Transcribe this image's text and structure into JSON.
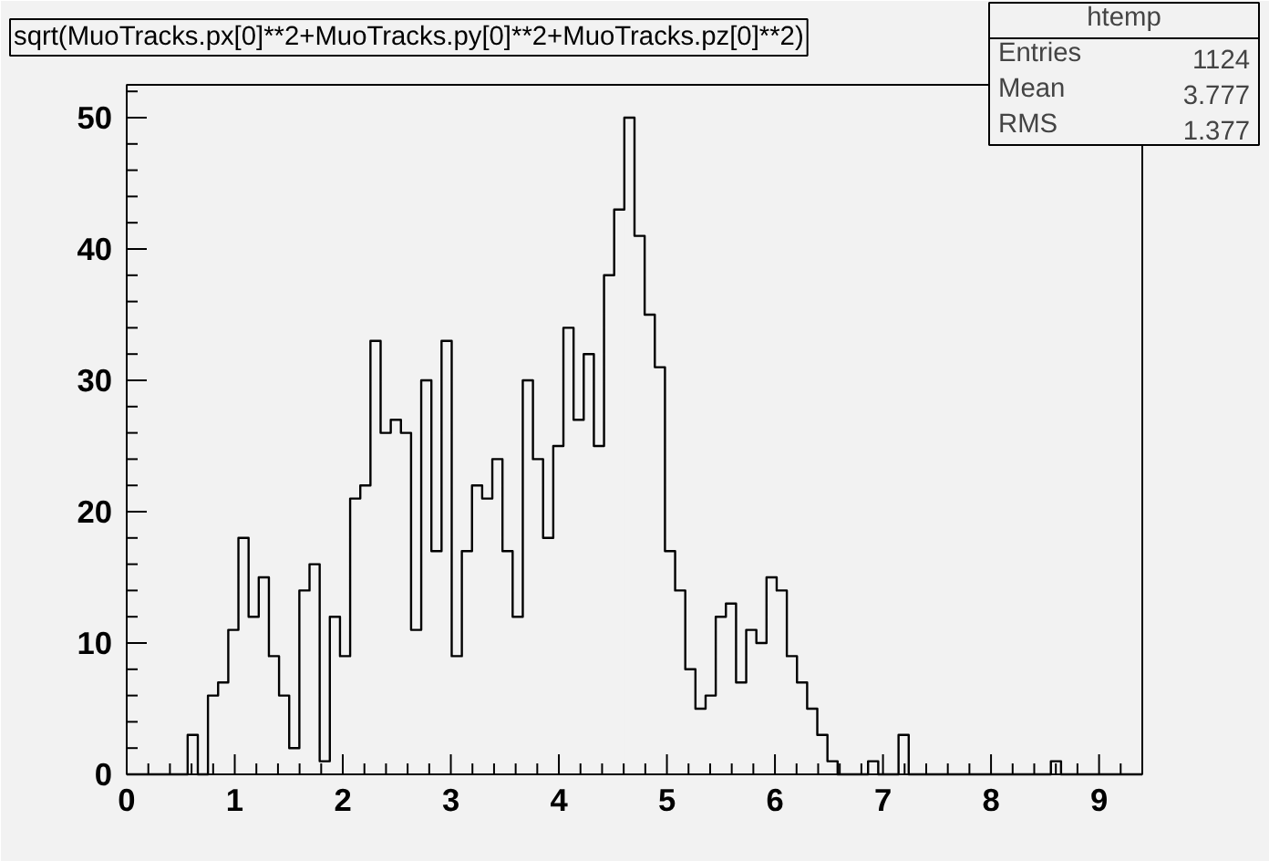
{
  "chart_data": {
    "type": "histogram",
    "title": "sqrt(MuoTracks.px[0]**2+MuoTracks.py[0]**2+MuoTracks.pz[0]**2)",
    "bins": [
      0,
      0.094,
      0.188,
      0.282,
      0.376,
      0.47,
      0.564,
      0.658,
      0.752,
      0.846,
      0.94,
      1.034,
      1.128,
      1.222,
      1.316,
      1.41,
      1.504,
      1.598,
      1.692,
      1.786,
      1.88,
      1.974,
      2.068,
      2.162,
      2.256,
      2.35,
      2.444,
      2.538,
      2.632,
      2.726,
      2.82,
      2.914,
      3.008,
      3.102,
      3.196,
      3.29,
      3.384,
      3.478,
      3.572,
      3.666,
      3.76,
      3.854,
      3.948,
      4.042,
      4.136,
      4.23,
      4.324,
      4.418,
      4.512,
      4.606,
      4.7,
      4.794,
      4.888,
      4.982,
      5.076,
      5.17,
      5.264,
      5.358,
      5.452,
      5.546,
      5.64,
      5.734,
      5.828,
      5.922,
      6.016,
      6.11,
      6.204,
      6.298,
      6.392,
      6.486,
      6.58,
      6.674,
      6.768,
      6.862,
      6.956,
      7.05,
      7.144,
      7.238,
      7.332,
      7.426,
      7.52,
      7.614,
      7.708,
      7.802,
      7.896,
      7.99,
      8.084,
      8.178,
      8.272,
      8.366,
      8.46,
      8.554,
      8.648,
      8.742,
      8.836,
      8.93,
      9.024,
      9.118,
      9.212,
      9.306,
      9.4
    ],
    "values": [
      0,
      0,
      0,
      0,
      0,
      0,
      3,
      0,
      6,
      7,
      11,
      18,
      12,
      15,
      9,
      6,
      2,
      14,
      16,
      1,
      12,
      9,
      21,
      22,
      33,
      26,
      27,
      26,
      11,
      30,
      17,
      33,
      9,
      17,
      22,
      21,
      24,
      17,
      12,
      30,
      24,
      18,
      25,
      34,
      27,
      32,
      25,
      38,
      43,
      50,
      41,
      35,
      31,
      17,
      14,
      8,
      5,
      6,
      12,
      13,
      7,
      11,
      10,
      15,
      14,
      9,
      7,
      5,
      3,
      1,
      0,
      0,
      0,
      1,
      0,
      0,
      3,
      0,
      0,
      0,
      0,
      0,
      0,
      0,
      0,
      0,
      0,
      0,
      0,
      0,
      0,
      1,
      0,
      0,
      0,
      0,
      0,
      0,
      0,
      0
    ],
    "color": "#000000",
    "xlim": [
      0,
      9.4
    ],
    "xticks": [
      0,
      1,
      2,
      3,
      4,
      5,
      6,
      7,
      8,
      9
    ],
    "ylim": [
      0,
      52.5
    ],
    "yticks": [
      0,
      10,
      20,
      30,
      40,
      50
    ],
    "grid": false,
    "annotations": [
      "htemp",
      "Entries",
      "1124",
      "Mean",
      "3.777",
      "RMS",
      "1.377"
    ]
  }
}
